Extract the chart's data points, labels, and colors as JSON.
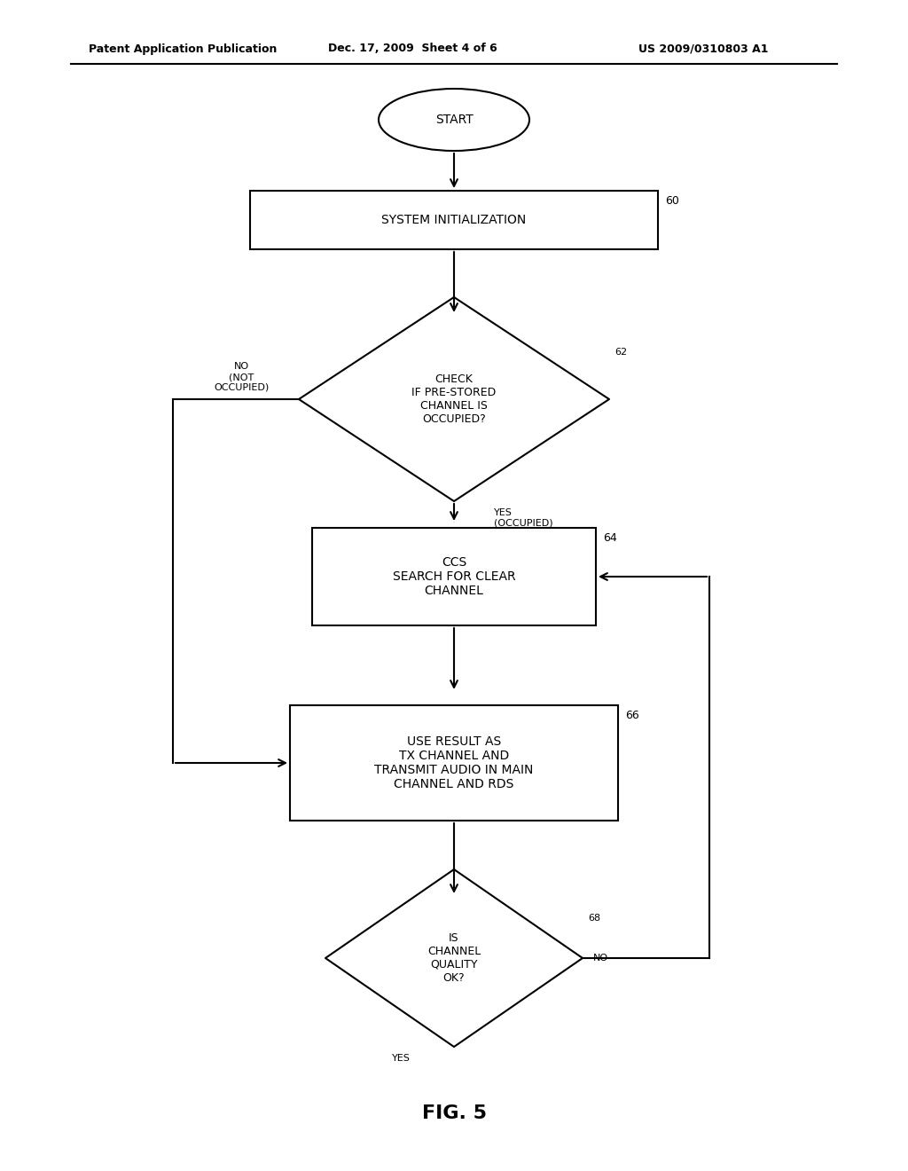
{
  "title_left": "Patent Application Publication",
  "title_center": "Dec. 17, 2009  Sheet 4 of 6",
  "title_right": "US 2009/0310803 A1",
  "fig_label": "FIG. 5",
  "background_color": "#ffffff",
  "line_width": 1.5,
  "font_size_shape": 10,
  "font_size_header": 9,
  "font_size_fig": 16,
  "font_size_label": 9
}
